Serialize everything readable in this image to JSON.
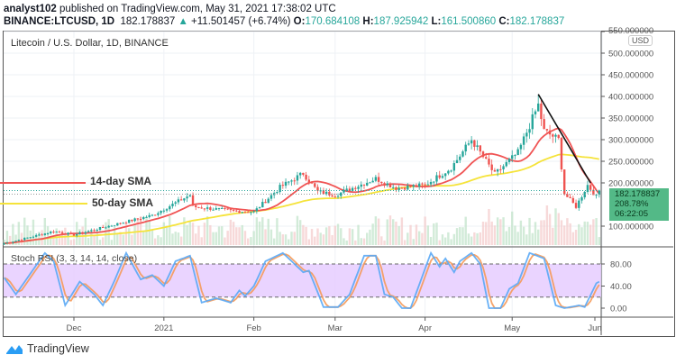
{
  "header": {
    "author": "analyst102",
    "published": "published on TradingView.com, May 31, 2021 17:38:02 UTC",
    "symbol": "BINANCE:LTCUSD, 1D",
    "last": "182.178837",
    "change": "+11.501457 (+6.74%)",
    "o_label": "O:",
    "o": "170.684108",
    "h_label": "H:",
    "h": "187.925942",
    "l_label": "L:",
    "l": "161.500860",
    "c_label": "C:",
    "c": "182.178837"
  },
  "chart": {
    "title": "Litecoin / U.S. Dollar, 1D, BINANCE",
    "currency": "USD",
    "sma14_label": "14-day SMA",
    "sma50_label": "50-day SMA",
    "price_box": {
      "price": "182.178837",
      "pct": "208.78%",
      "countdown": "06:22:05"
    },
    "stoch_title": "Stoch RSI (3, 3, 14, 14, close)",
    "colors": {
      "up": "#26a69a",
      "down": "#ef5350",
      "sma14": "#f05454",
      "sma50": "#f5e33a",
      "k": "#5aa9f5",
      "d": "#f59a5a",
      "stoch_band": "#e6ccff"
    }
  },
  "footer": {
    "brand": "TradingView"
  },
  "chart_data": {
    "type": "candlestick",
    "price_ticks": [
      "550.000000",
      "500.000000",
      "450.000000",
      "400.000000",
      "350.000000",
      "300.000000",
      "250.000000",
      "200.000000",
      "100.000000"
    ],
    "price_tick_values": [
      550,
      500,
      450,
      400,
      350,
      300,
      250,
      200,
      100
    ],
    "stoch_ticks": [
      "80.00",
      "40.00",
      "0.00"
    ],
    "stoch_tick_values": [
      80,
      40,
      0
    ],
    "date_ticks": [
      {
        "label": "Dec",
        "date": "2020-12-01"
      },
      {
        "label": "2021",
        "date": "2021-01-01"
      },
      {
        "label": "Feb",
        "date": "2021-02-01"
      },
      {
        "label": "Mar",
        "date": "2021-03-01"
      },
      {
        "label": "Apr",
        "date": "2021-04-01"
      },
      {
        "label": "May",
        "date": "2021-05-01"
      },
      {
        "label": "Jun",
        "date": "2021-06-01"
      }
    ],
    "close_keypoints": [
      [
        "2020-11-07",
        60
      ],
      [
        "2020-11-24",
        88
      ],
      [
        "2020-12-01",
        80
      ],
      [
        "2020-12-20",
        112
      ],
      [
        "2020-12-28",
        125
      ],
      [
        "2021-01-10",
        172
      ],
      [
        "2021-01-11",
        145
      ],
      [
        "2021-01-25",
        135
      ],
      [
        "2021-02-01",
        133
      ],
      [
        "2021-02-10",
        190
      ],
      [
        "2021-02-18",
        222
      ],
      [
        "2021-02-23",
        180
      ],
      [
        "2021-03-01",
        172
      ],
      [
        "2021-03-15",
        210
      ],
      [
        "2021-03-22",
        188
      ],
      [
        "2021-04-01",
        195
      ],
      [
        "2021-04-10",
        235
      ],
      [
        "2021-04-17",
        300
      ],
      [
        "2021-04-25",
        220
      ],
      [
        "2021-05-03",
        270
      ],
      [
        "2021-05-10",
        380
      ],
      [
        "2021-05-12",
        320
      ],
      [
        "2021-05-17",
        300
      ],
      [
        "2021-05-19",
        175
      ],
      [
        "2021-05-23",
        145
      ],
      [
        "2021-05-27",
        195
      ],
      [
        "2021-05-30",
        168
      ],
      [
        "2021-05-31",
        182
      ]
    ],
    "trendline": [
      [
        "2021-05-10",
        405
      ],
      [
        "2021-05-28",
        200
      ]
    ],
    "stoch_k_keypoints": [
      [
        "2020-11-07",
        55
      ],
      [
        "2020-11-11",
        25
      ],
      [
        "2020-11-15",
        55
      ],
      [
        "2020-11-21",
        100
      ],
      [
        "2020-11-24",
        85
      ],
      [
        "2020-11-28",
        5
      ],
      [
        "2020-12-03",
        48
      ],
      [
        "2020-12-08",
        25
      ],
      [
        "2020-12-11",
        5
      ],
      [
        "2020-12-15",
        50
      ],
      [
        "2020-12-19",
        100
      ],
      [
        "2020-12-24",
        52
      ],
      [
        "2020-12-28",
        60
      ],
      [
        "2021-01-01",
        40
      ],
      [
        "2021-01-05",
        85
      ],
      [
        "2021-01-10",
        95
      ],
      [
        "2021-01-14",
        10
      ],
      [
        "2021-01-19",
        18
      ],
      [
        "2021-01-24",
        10
      ],
      [
        "2021-01-27",
        32
      ],
      [
        "2021-01-29",
        22
      ],
      [
        "2021-02-01",
        40
      ],
      [
        "2021-02-05",
        85
      ],
      [
        "2021-02-11",
        100
      ],
      [
        "2021-02-18",
        65
      ],
      [
        "2021-02-20",
        68
      ],
      [
        "2021-02-25",
        2
      ],
      [
        "2021-03-02",
        2
      ],
      [
        "2021-03-06",
        25
      ],
      [
        "2021-03-11",
        95
      ],
      [
        "2021-03-15",
        95
      ],
      [
        "2021-03-18",
        25
      ],
      [
        "2021-03-21",
        20
      ],
      [
        "2021-03-24",
        0
      ],
      [
        "2021-03-27",
        0
      ],
      [
        "2021-04-03",
        100
      ],
      [
        "2021-04-06",
        75
      ],
      [
        "2021-04-08",
        90
      ],
      [
        "2021-04-11",
        65
      ],
      [
        "2021-04-13",
        85
      ],
      [
        "2021-04-17",
        100
      ],
      [
        "2021-04-20",
        80
      ],
      [
        "2021-04-23",
        0
      ],
      [
        "2021-04-27",
        0
      ],
      [
        "2021-04-30",
        35
      ],
      [
        "2021-05-03",
        45
      ],
      [
        "2021-05-07",
        100
      ],
      [
        "2021-05-12",
        90
      ],
      [
        "2021-05-16",
        5
      ],
      [
        "2021-05-19",
        0
      ],
      [
        "2021-05-24",
        5
      ],
      [
        "2021-05-26",
        2
      ],
      [
        "2021-05-30",
        45
      ],
      [
        "2021-05-31",
        48
      ]
    ]
  }
}
